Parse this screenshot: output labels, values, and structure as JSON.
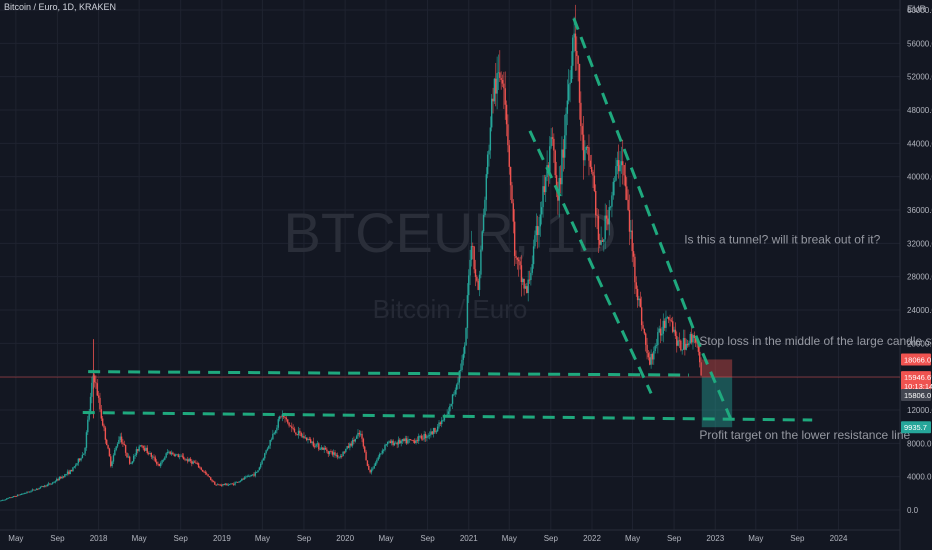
{
  "header": {
    "title": "Bitcoin / Euro, 1D, KRAKEN"
  },
  "currency": "EUR",
  "watermark": {
    "symbol": "BTCEUR, 1D",
    "name": "Bitcoin / Euro"
  },
  "colors": {
    "background": "#131722",
    "grid": "#1f2330",
    "up": "#26a69a",
    "down": "#ef5350",
    "annotation_line": "#1fa97e",
    "axis_text": "#b2b5be",
    "annotation_text": "#9598a1"
  },
  "chart_data": {
    "type": "candlestick",
    "title": "Bitcoin / Euro, 1D, KRAKEN",
    "y_axis": {
      "unit": "EUR",
      "range": [
        0,
        60000
      ],
      "ticks": [
        "0.0",
        "4000.0",
        "8000.0",
        "12000.0",
        "16000.0",
        "20000.0",
        "24000.0",
        "28000.0",
        "32000.0",
        "36000.0",
        "40000.0",
        "44000.0",
        "48000.0",
        "52000.0",
        "56000.0",
        "60000.0"
      ]
    },
    "x_axis": {
      "range": [
        "2017-03-15",
        "2024-07-01"
      ],
      "ticks": [
        {
          "date": "2017-05-01",
          "label": "May"
        },
        {
          "date": "2017-09-01",
          "label": "Sep"
        },
        {
          "date": "2018-01-01",
          "label": "2018"
        },
        {
          "date": "2018-05-01",
          "label": "May"
        },
        {
          "date": "2018-09-01",
          "label": "Sep"
        },
        {
          "date": "2019-01-01",
          "label": "2019"
        },
        {
          "date": "2019-05-01",
          "label": "May"
        },
        {
          "date": "2019-09-01",
          "label": "Sep"
        },
        {
          "date": "2020-01-01",
          "label": "2020"
        },
        {
          "date": "2020-05-01",
          "label": "May"
        },
        {
          "date": "2020-09-01",
          "label": "Sep"
        },
        {
          "date": "2021-01-01",
          "label": "2021"
        },
        {
          "date": "2021-05-01",
          "label": "May"
        },
        {
          "date": "2021-09-01",
          "label": "Sep"
        },
        {
          "date": "2022-01-01",
          "label": "2022"
        },
        {
          "date": "2022-05-01",
          "label": "May"
        },
        {
          "date": "2022-09-01",
          "label": "Sep"
        },
        {
          "date": "2023-01-01",
          "label": "2023"
        },
        {
          "date": "2023-05-01",
          "label": "May"
        },
        {
          "date": "2023-09-01",
          "label": "Sep"
        },
        {
          "date": "2024-01-01",
          "label": "2024"
        }
      ]
    },
    "price_path": [
      {
        "date": "2017-03-15",
        "price": 1100
      },
      {
        "date": "2017-06-01",
        "price": 2100
      },
      {
        "date": "2017-08-15",
        "price": 3200
      },
      {
        "date": "2017-10-15",
        "price": 4800
      },
      {
        "date": "2017-11-20",
        "price": 7000
      },
      {
        "date": "2017-12-17",
        "price": 16500
      },
      {
        "date": "2018-01-10",
        "price": 11000
      },
      {
        "date": "2018-02-06",
        "price": 5500
      },
      {
        "date": "2018-03-05",
        "price": 9000
      },
      {
        "date": "2018-04-05",
        "price": 5500
      },
      {
        "date": "2018-05-05",
        "price": 8000
      },
      {
        "date": "2018-07-01",
        "price": 5300
      },
      {
        "date": "2018-07-25",
        "price": 7000
      },
      {
        "date": "2018-10-15",
        "price": 5600
      },
      {
        "date": "2018-12-15",
        "price": 3000
      },
      {
        "date": "2019-02-01",
        "price": 3100
      },
      {
        "date": "2019-04-15",
        "price": 4500
      },
      {
        "date": "2019-06-26",
        "price": 11500
      },
      {
        "date": "2019-08-01",
        "price": 9500
      },
      {
        "date": "2019-10-20",
        "price": 7500
      },
      {
        "date": "2019-12-15",
        "price": 6400
      },
      {
        "date": "2020-02-15",
        "price": 9200
      },
      {
        "date": "2020-03-13",
        "price": 4400
      },
      {
        "date": "2020-05-01",
        "price": 8000
      },
      {
        "date": "2020-07-20",
        "price": 8300
      },
      {
        "date": "2020-09-15",
        "price": 9300
      },
      {
        "date": "2020-11-01",
        "price": 11500
      },
      {
        "date": "2020-12-20",
        "price": 19000
      },
      {
        "date": "2021-01-08",
        "price": 33000
      },
      {
        "date": "2021-01-28",
        "price": 26000
      },
      {
        "date": "2021-03-13",
        "price": 50000
      },
      {
        "date": "2021-04-14",
        "price": 53000
      },
      {
        "date": "2021-05-19",
        "price": 30000
      },
      {
        "date": "2021-06-22",
        "price": 26000
      },
      {
        "date": "2021-08-10",
        "price": 38000
      },
      {
        "date": "2021-09-07",
        "price": 44000
      },
      {
        "date": "2021-09-21",
        "price": 36000
      },
      {
        "date": "2021-11-10",
        "price": 59000
      },
      {
        "date": "2021-12-04",
        "price": 43000
      },
      {
        "date": "2022-01-01",
        "price": 41000
      },
      {
        "date": "2022-01-24",
        "price": 31000
      },
      {
        "date": "2022-03-28",
        "price": 43000
      },
      {
        "date": "2022-05-12",
        "price": 27000
      },
      {
        "date": "2022-06-18",
        "price": 17500
      },
      {
        "date": "2022-08-15",
        "price": 24000
      },
      {
        "date": "2022-09-15",
        "price": 19500
      },
      {
        "date": "2022-11-05",
        "price": 21000
      },
      {
        "date": "2022-11-21",
        "price": 15500
      }
    ],
    "annotations": [
      {
        "text": "Is this a tunnel? will it break out of it?",
        "date": "2022-10-01",
        "price": 32000
      },
      {
        "text": "Stop loss in the middle of the large candle stick. Does it make",
        "date": "2022-11-15",
        "price": 19800
      },
      {
        "text": "Profit target on the lower resistance line",
        "date": "2022-11-15",
        "price": 8500
      }
    ],
    "lines": [
      {
        "name": "upper-resistance",
        "from": {
          "date": "2017-12-01",
          "price": 16600
        },
        "to": {
          "date": "2022-10-15",
          "price": 16200
        }
      },
      {
        "name": "lower-resistance",
        "from": {
          "date": "2017-11-15",
          "price": 11700
        },
        "to": {
          "date": "2023-10-15",
          "price": 10800
        }
      },
      {
        "name": "channel-upper",
        "from": {
          "date": "2021-11-08",
          "price": 59000
        },
        "to": {
          "date": "2022-11-25",
          "price": 18800
        }
      },
      {
        "name": "channel-lower",
        "from": {
          "date": "2021-07-01",
          "price": 45500
        },
        "to": {
          "date": "2022-06-25",
          "price": 14000
        }
      },
      {
        "name": "channel-extension",
        "from": {
          "date": "2022-11-25",
          "price": 18800
        },
        "to": {
          "date": "2023-02-15",
          "price": 11000
        }
      }
    ],
    "position": {
      "entry": 15946.6,
      "stop": 18066.0,
      "target": 9935.7,
      "from": "2022-11-22",
      "to": "2023-02-20"
    },
    "price_labels": [
      {
        "text": "18066.0",
        "price": 18066.0,
        "color": "#ef5350"
      },
      {
        "text": "15946.6",
        "price": 15946.6,
        "color": "#ef5350"
      },
      {
        "text": "10:13:14",
        "price": 14900,
        "color": "#ef5350"
      },
      {
        "text": "15806.0",
        "price": 13800,
        "color": "#434651"
      },
      {
        "text": "9935.7",
        "price": 9935.7,
        "color": "#26a69a"
      }
    ]
  }
}
